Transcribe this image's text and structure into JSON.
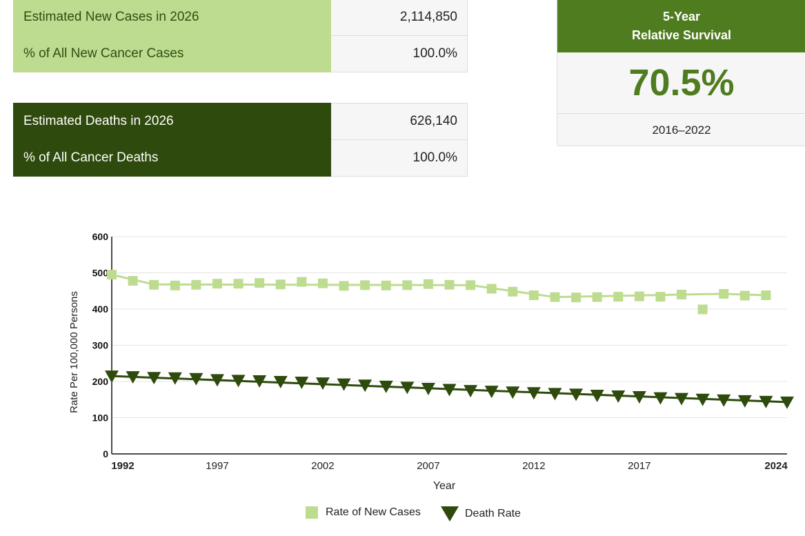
{
  "new_cases": {
    "rows": [
      {
        "label": "Estimated New Cases in 2026",
        "value": "2,114,850"
      },
      {
        "label": "% of All New Cancer Cases",
        "value": "100.0%"
      }
    ]
  },
  "deaths": {
    "rows": [
      {
        "label": "Estimated Deaths in 2026",
        "value": "626,140"
      },
      {
        "label": "% of All Cancer Deaths",
        "value": "100.0%"
      }
    ]
  },
  "survival": {
    "title_line1": "5-Year",
    "title_line2": "Relative Survival",
    "value": "70.5%",
    "years": "2016–2022"
  },
  "colors": {
    "new_cases": "#bedc8f",
    "death_rate": "#2e4a0c",
    "accent": "#4f7c1f"
  },
  "chart_data": {
    "type": "line",
    "xlabel": "Year",
    "ylabel": "Rate Per 100,000 Persons",
    "x_ticks": [
      "1992",
      "1997",
      "2002",
      "2007",
      "2012",
      "2017",
      "2024"
    ],
    "y_ticks": [
      "0",
      "100",
      "200",
      "300",
      "400",
      "500",
      "600"
    ],
    "xlim": [
      1992,
      2024
    ],
    "ylim": [
      0,
      600
    ],
    "grid": true,
    "legend_position": "bottom",
    "series": [
      {
        "name": "Rate of New Cases",
        "marker": "square",
        "points": [
          [
            1992,
            495
          ],
          [
            1993,
            478
          ],
          [
            1994,
            467
          ],
          [
            1995,
            465
          ],
          [
            1996,
            467
          ],
          [
            1997,
            470
          ],
          [
            1998,
            470
          ],
          [
            1999,
            472
          ],
          [
            2000,
            468
          ],
          [
            2001,
            475
          ],
          [
            2002,
            471
          ],
          [
            2003,
            464
          ],
          [
            2004,
            466
          ],
          [
            2005,
            465
          ],
          [
            2006,
            466
          ],
          [
            2007,
            469
          ],
          [
            2008,
            467
          ],
          [
            2009,
            466
          ],
          [
            2010,
            456
          ],
          [
            2011,
            448
          ],
          [
            2012,
            438
          ],
          [
            2013,
            433
          ],
          [
            2014,
            432
          ],
          [
            2015,
            433
          ],
          [
            2016,
            434
          ],
          [
            2017,
            435
          ],
          [
            2018,
            434
          ],
          [
            2019,
            440
          ],
          [
            2020,
            399
          ],
          [
            2021,
            442
          ],
          [
            2022,
            437
          ],
          [
            2023,
            438
          ]
        ],
        "trend": [
          [
            1992,
            495
          ],
          [
            1994,
            468
          ],
          [
            2009,
            466
          ],
          [
            2013,
            433
          ],
          [
            2019,
            440
          ],
          [
            2021,
            442
          ],
          [
            2023,
            438
          ]
        ]
      },
      {
        "name": "Death Rate",
        "marker": "triangle-down",
        "points": [
          [
            1992,
            215
          ],
          [
            1993,
            213
          ],
          [
            1994,
            211
          ],
          [
            1995,
            210
          ],
          [
            1996,
            208
          ],
          [
            1997,
            205
          ],
          [
            1998,
            203
          ],
          [
            1999,
            202
          ],
          [
            2000,
            200
          ],
          [
            2001,
            198
          ],
          [
            2002,
            196
          ],
          [
            2003,
            193
          ],
          [
            2004,
            190
          ],
          [
            2005,
            187
          ],
          [
            2006,
            184
          ],
          [
            2007,
            181
          ],
          [
            2008,
            178
          ],
          [
            2009,
            175
          ],
          [
            2010,
            173
          ],
          [
            2011,
            171
          ],
          [
            2012,
            169
          ],
          [
            2013,
            167
          ],
          [
            2014,
            165
          ],
          [
            2015,
            162
          ],
          [
            2016,
            160
          ],
          [
            2017,
            158
          ],
          [
            2018,
            155
          ],
          [
            2019,
            153
          ],
          [
            2020,
            151
          ],
          [
            2021,
            149
          ],
          [
            2022,
            147
          ],
          [
            2023,
            145
          ],
          [
            2024,
            143
          ]
        ],
        "trend": [
          [
            1992,
            215
          ],
          [
            2024,
            143
          ]
        ]
      }
    ]
  }
}
